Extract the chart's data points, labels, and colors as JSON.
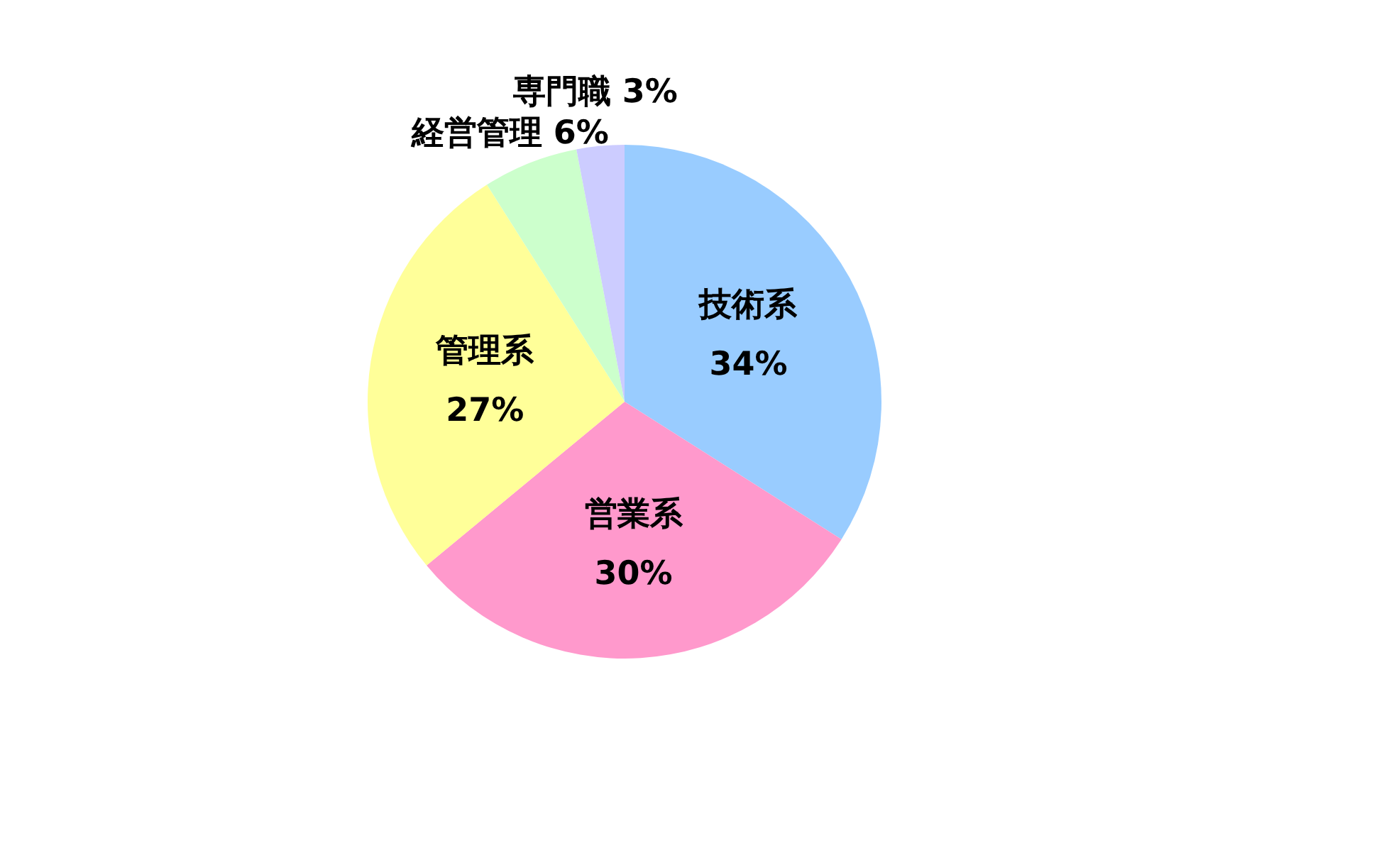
{
  "chart_data": {
    "type": "pie",
    "categories": [
      "技術系",
      "営業系",
      "管理系",
      "経営管理",
      "専門職"
    ],
    "values": [
      34,
      30,
      27,
      6,
      3
    ],
    "value_labels": [
      "34%",
      "30%",
      "27%",
      "6%",
      "3%"
    ],
    "colors": [
      "#99ccff",
      "#ff99cc",
      "#ffff99",
      "#ccffcc",
      "#ccccff"
    ]
  }
}
